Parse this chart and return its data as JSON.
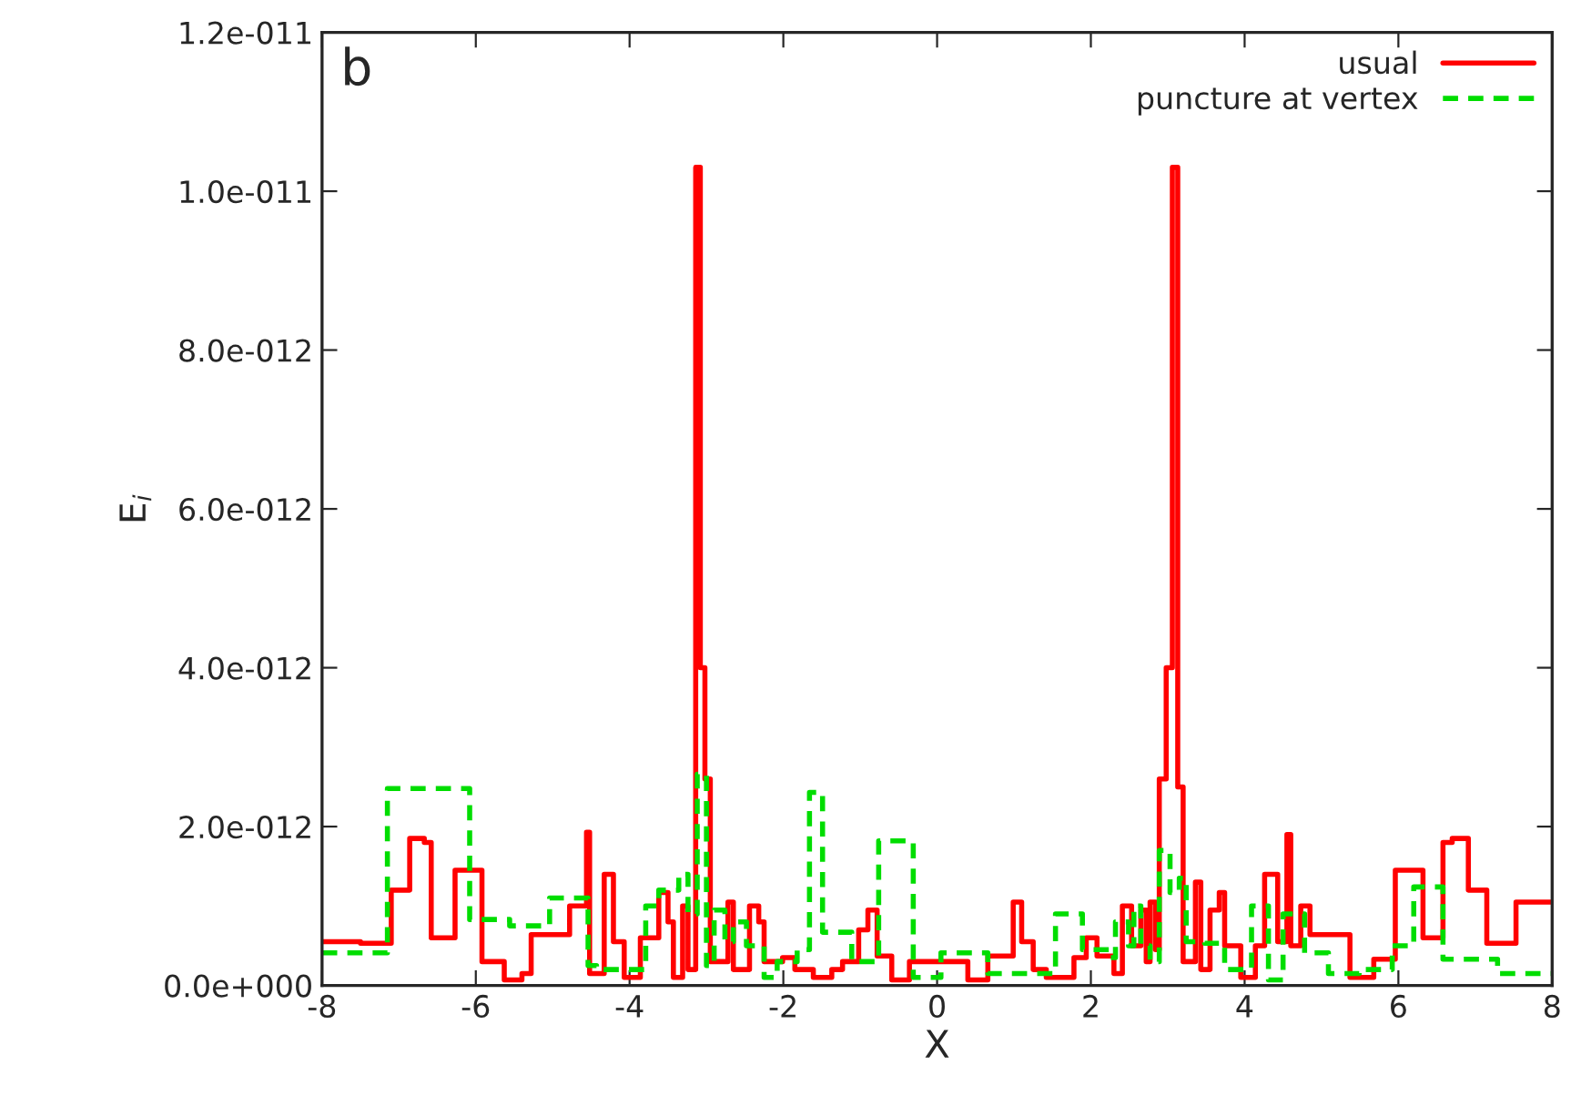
{
  "chart_data": {
    "type": "step",
    "xlabel": "X",
    "ylabel": "E$_{i}$",
    "annotations": [
      "b"
    ],
    "series": [
      {
        "name": "usual",
        "color": "#ff0000",
        "line_style": "solid",
        "x": [
          -8,
          -7.5,
          -7.1,
          -6.86,
          -6.67,
          -6.58,
          -6.27,
          -5.92,
          -5.63,
          -5.4,
          -5.28,
          -4.78,
          -4.56,
          -4.52,
          -4.33,
          -4.21,
          -4.07,
          -3.86,
          -3.62,
          -3.5,
          -3.43,
          -3.31,
          -3.24,
          -3.14,
          -3.08,
          -3.02,
          -2.95,
          -2.72,
          -2.65,
          -2.44,
          -2.32,
          -2.25,
          -2.01,
          -1.85,
          -1.61,
          -1.37,
          -1.23,
          -1.02,
          -0.9,
          -0.78,
          -0.59,
          -0.36,
          0.4,
          0.66,
          0.99,
          1.1,
          1.25,
          1.42,
          1.78,
          1.94,
          2.08,
          2.3,
          2.41,
          2.53,
          2.65,
          2.72,
          2.77,
          2.84,
          2.89,
          2.98,
          3.06,
          3.13,
          3.2,
          3.36,
          3.43,
          3.55,
          3.67,
          3.74,
          3.95,
          4.14,
          4.26,
          4.43,
          4.55,
          4.6,
          4.73,
          4.85,
          5.37,
          5.68,
          5.96,
          6.32,
          6.58,
          6.7,
          6.91,
          7.15,
          7.53,
          8
        ],
        "values": [
          5.5e-13,
          5.3e-13,
          1.2e-12,
          1.85e-12,
          1.8e-12,
          6e-13,
          1.45e-12,
          3e-13,
          7e-14,
          1.5e-13,
          6.4e-13,
          1e-12,
          1.93e-12,
          1.5e-13,
          1.4e-12,
          5.5e-13,
          1e-13,
          6e-13,
          1.17e-12,
          8e-13,
          1e-13,
          1e-12,
          2e-13,
          1.03e-11,
          4e-12,
          2.6e-12,
          3e-13,
          1.05e-12,
          2e-13,
          1e-12,
          8e-13,
          3e-13,
          3.5e-13,
          2e-13,
          1e-13,
          2e-13,
          3e-13,
          7e-13,
          9.5e-13,
          3.7e-13,
          7e-14,
          3e-13,
          7e-14,
          3.7e-13,
          1.05e-12,
          5.5e-13,
          2e-13,
          1e-13,
          3.5e-13,
          6e-13,
          3.7e-13,
          1.5e-13,
          1e-12,
          5e-13,
          9.5e-13,
          3e-13,
          1.05e-12,
          4.5e-13,
          2.6e-12,
          4e-12,
          1.03e-11,
          2.5e-12,
          3e-13,
          1.3e-12,
          2e-13,
          9.5e-13,
          1.17e-12,
          5e-13,
          1e-13,
          5e-13,
          1.4e-12,
          5.5e-13,
          1.9e-12,
          5e-13,
          1e-12,
          6.4e-13,
          1e-13,
          3.3e-13,
          1.45e-12,
          6e-13,
          1.8e-12,
          1.85e-12,
          1.2e-12,
          5.3e-13,
          1.05e-12,
          1.05e-12
        ]
      },
      {
        "name": "puncture at vertex",
        "color": "#00dd00",
        "line_style": "dashed",
        "x": [
          -8,
          -7.15,
          -6.08,
          -5.56,
          -5.04,
          -4.54,
          -4.43,
          -3.79,
          -3.62,
          -3.36,
          -3.24,
          -3.12,
          -3.0,
          -2.9,
          -2.76,
          -2.65,
          -2.48,
          -2.25,
          -2.08,
          -1.82,
          -1.66,
          -1.49,
          -1.11,
          -0.76,
          -0.31,
          0.05,
          0.66,
          1.54,
          1.89,
          2.25,
          2.32,
          2.49,
          2.56,
          2.65,
          2.77,
          2.89,
          3.03,
          3.15,
          3.24,
          3.48,
          3.74,
          4.09,
          4.31,
          4.5,
          4.78,
          5.09,
          5.49,
          5.92,
          6.2,
          6.58,
          7.29,
          8
        ],
        "values": [
          4.1e-13,
          2.48e-12,
          8.3e-13,
          7.5e-13,
          1.1e-12,
          2.5e-13,
          2e-13,
          1e-12,
          1.2e-12,
          1.4e-12,
          9e-13,
          2.66e-12,
          2.5e-13,
          9.5e-13,
          5.5e-13,
          8e-13,
          5e-13,
          1e-13,
          3e-13,
          4.5e-13,
          2.43e-12,
          6.7e-13,
          3e-13,
          1.82e-12,
          1e-13,
          4.1e-13,
          1.5e-13,
          9e-13,
          4.5e-13,
          3.5e-13,
          8e-13,
          5e-13,
          1e-12,
          5e-13,
          3e-13,
          1.7e-12,
          1.17e-12,
          1.35e-12,
          5.5e-13,
          5.3e-13,
          2e-13,
          1e-12,
          7e-14,
          9e-13,
          4.1e-13,
          1.5e-13,
          2e-13,
          5e-13,
          1.24e-12,
          3.3e-13,
          1.5e-13,
          1.5e-13
        ]
      }
    ],
    "xlim": [
      -8,
      8
    ],
    "xticks": [
      -8,
      -6,
      -4,
      -2,
      0,
      2,
      4,
      6,
      8
    ],
    "ylim": [
      0,
      1.2e-11
    ],
    "yticks": [
      {
        "value": 0,
        "label": "0.0e+000"
      },
      {
        "value": 2e-12,
        "label": "2.0e-012"
      },
      {
        "value": 4e-12,
        "label": "4.0e-012"
      },
      {
        "value": 6e-12,
        "label": "6.0e-012"
      },
      {
        "value": 8e-12,
        "label": "8.0e-012"
      },
      {
        "value": 1e-11,
        "label": "1.0e-011"
      },
      {
        "value": 1.2e-11,
        "label": "1.2e-011"
      }
    ],
    "grid": false,
    "legend": "top right",
    "marker": "none"
  }
}
